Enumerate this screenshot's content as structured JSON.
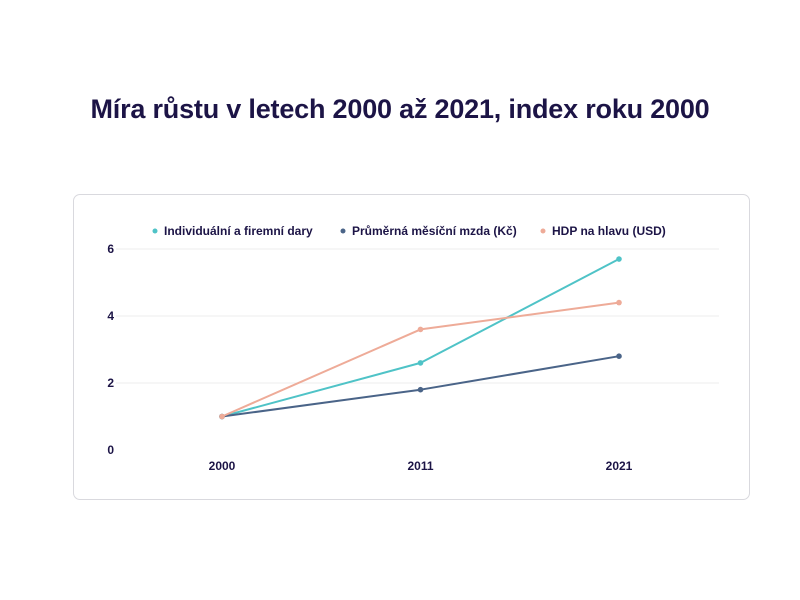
{
  "page": {
    "title": "Míra růstu v letech 2000 až 2021, index roku 2000"
  },
  "chart_data": {
    "type": "line",
    "title": "Míra růstu v letech 2000 až 2021, index roku 2000",
    "xlabel": "",
    "ylabel": "",
    "categories": [
      "2000",
      "2011",
      "2021"
    ],
    "ylim": [
      0,
      6
    ],
    "yticks": [
      0,
      2,
      4,
      6
    ],
    "grid": true,
    "legend_position": "top",
    "series": [
      {
        "name": "Individuální a firemní dary",
        "color": "#4fc3c7",
        "values": [
          1.0,
          2.6,
          5.7
        ]
      },
      {
        "name": "Průměrná měsíční mzda (Kč)",
        "color": "#4a6488",
        "values": [
          1.0,
          1.8,
          2.8
        ]
      },
      {
        "name": "HDP na hlavu (USD)",
        "color": "#eeab98",
        "values": [
          1.0,
          3.6,
          4.4
        ]
      }
    ]
  }
}
